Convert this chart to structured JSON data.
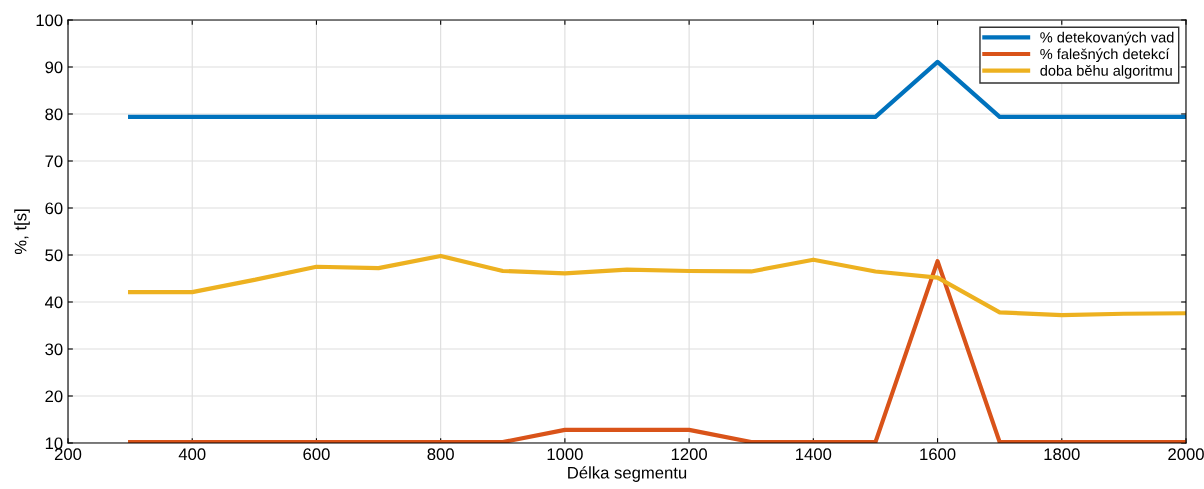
{
  "chart_data": {
    "type": "line",
    "xlabel": "Délka segmentu",
    "ylabel": "%, t[s]",
    "x": [
      300,
      400,
      500,
      600,
      700,
      800,
      900,
      1000,
      1100,
      1200,
      1300,
      1400,
      1500,
      1600,
      1700,
      1800,
      1900,
      2000
    ],
    "series": [
      {
        "name": "% detekovaných vad",
        "color": "#0072bd",
        "values": [
          79.4,
          79.4,
          79.4,
          79.4,
          79.4,
          79.4,
          79.4,
          79.4,
          79.4,
          79.4,
          79.4,
          79.4,
          79.4,
          91.1,
          79.4,
          79.4,
          79.4,
          79.4
        ]
      },
      {
        "name": "% falešných detekcí",
        "color": "#d95319",
        "values": [
          10.2,
          10.2,
          10.2,
          10.2,
          10.2,
          10.2,
          10.2,
          12.8,
          12.8,
          12.8,
          10.2,
          10.2,
          10.2,
          48.7,
          10.2,
          10.2,
          10.2,
          10.2
        ]
      },
      {
        "name": "doba běhu algoritmu",
        "color": "#edb120",
        "values": [
          42.1,
          42.1,
          44.7,
          47.5,
          47.2,
          49.8,
          46.6,
          46.1,
          46.9,
          46.6,
          46.5,
          49.0,
          46.5,
          45.2,
          37.8,
          37.2,
          37.5,
          37.6
        ]
      }
    ],
    "xlim": [
      200,
      2000
    ],
    "xticks": [
      200,
      400,
      600,
      800,
      1000,
      1200,
      1400,
      1600,
      1800,
      2000
    ],
    "ylim": [
      10,
      100
    ],
    "yticks": [
      10,
      20,
      30,
      40,
      50,
      60,
      70,
      80,
      90,
      100
    ],
    "grid": true,
    "legend": "top right",
    "line_style": "solid",
    "marker": "none"
  }
}
